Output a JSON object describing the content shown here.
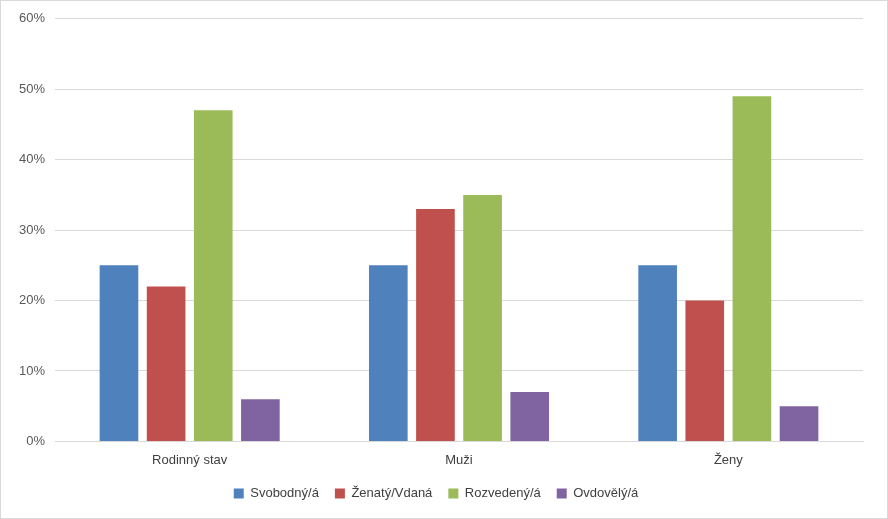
{
  "chart_data": {
    "type": "bar",
    "categories": [
      "Rodinný stav",
      "Muži",
      "Ženy"
    ],
    "series": [
      {
        "name": "Svobodný/á",
        "color": "#4f81bd",
        "values": [
          25,
          25,
          25
        ]
      },
      {
        "name": "Ženatý/Vdaná",
        "color": "#c0504d",
        "values": [
          22,
          33,
          20
        ]
      },
      {
        "name": "Rozvedený/á",
        "color": "#9bbb59",
        "values": [
          47,
          35,
          49
        ]
      },
      {
        "name": "Ovdovělý/á",
        "color": "#8064a2",
        "values": [
          6,
          7,
          5
        ]
      }
    ],
    "ylim": [
      0,
      60
    ],
    "yticks": [
      {
        "value": 0,
        "label": "0%"
      },
      {
        "value": 10,
        "label": "10%"
      },
      {
        "value": 20,
        "label": "20%"
      },
      {
        "value": 30,
        "label": "30%"
      },
      {
        "value": 40,
        "label": "40%"
      },
      {
        "value": 50,
        "label": "50%"
      },
      {
        "value": 60,
        "label": "60%"
      }
    ],
    "grid": true,
    "legend": "bottom"
  }
}
